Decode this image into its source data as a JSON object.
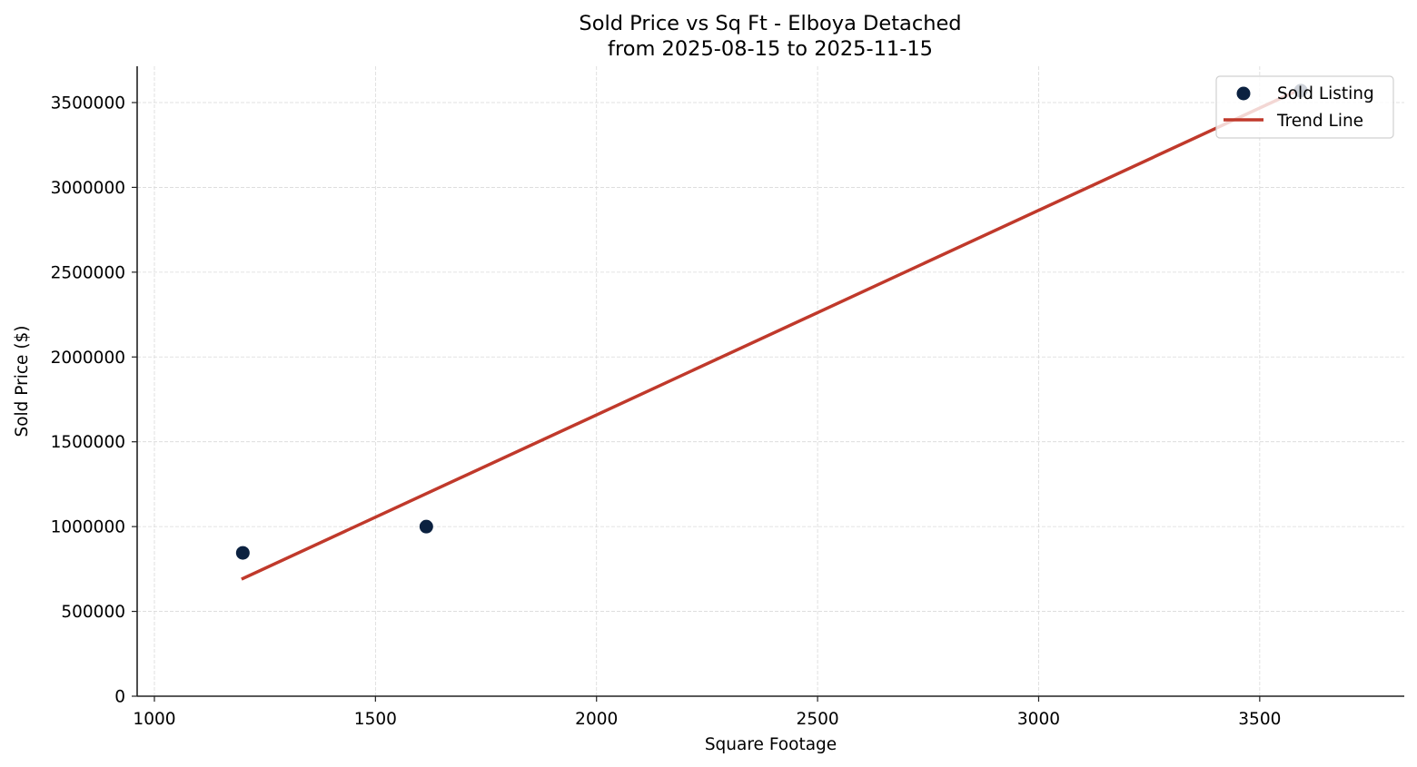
{
  "chart_data": {
    "type": "scatter",
    "title": "Sold Price vs Sq Ft - Elboya Detached",
    "subtitle": "from 2025-08-15 to 2025-11-15",
    "xlabel": "Square Footage",
    "ylabel": "Sold Price ($)",
    "xlim": [
      961,
      3827
    ],
    "ylim": [
      0,
      3714000
    ],
    "xticks": [
      1000,
      1500,
      2000,
      2500,
      3000,
      3500
    ],
    "yticks": [
      0,
      500000,
      1000000,
      1500000,
      2000000,
      2500000,
      3000000,
      3500000
    ],
    "grid": true,
    "legend_position": "upper right",
    "series": [
      {
        "name": "Sold Listing",
        "kind": "scatter",
        "color": "#0b2140",
        "points": [
          {
            "x": 1200,
            "y": 845000
          },
          {
            "x": 1615,
            "y": 1000000
          },
          {
            "x": 3593,
            "y": 3570000
          }
        ]
      },
      {
        "name": "Trend Line",
        "kind": "line",
        "color": "#c0392b",
        "points": [
          {
            "x": 1197,
            "y": 690000
          },
          {
            "x": 3593,
            "y": 3580000
          }
        ]
      }
    ]
  },
  "legend": {
    "items": [
      {
        "label": "Sold Listing"
      },
      {
        "label": "Trend Line"
      }
    ]
  }
}
